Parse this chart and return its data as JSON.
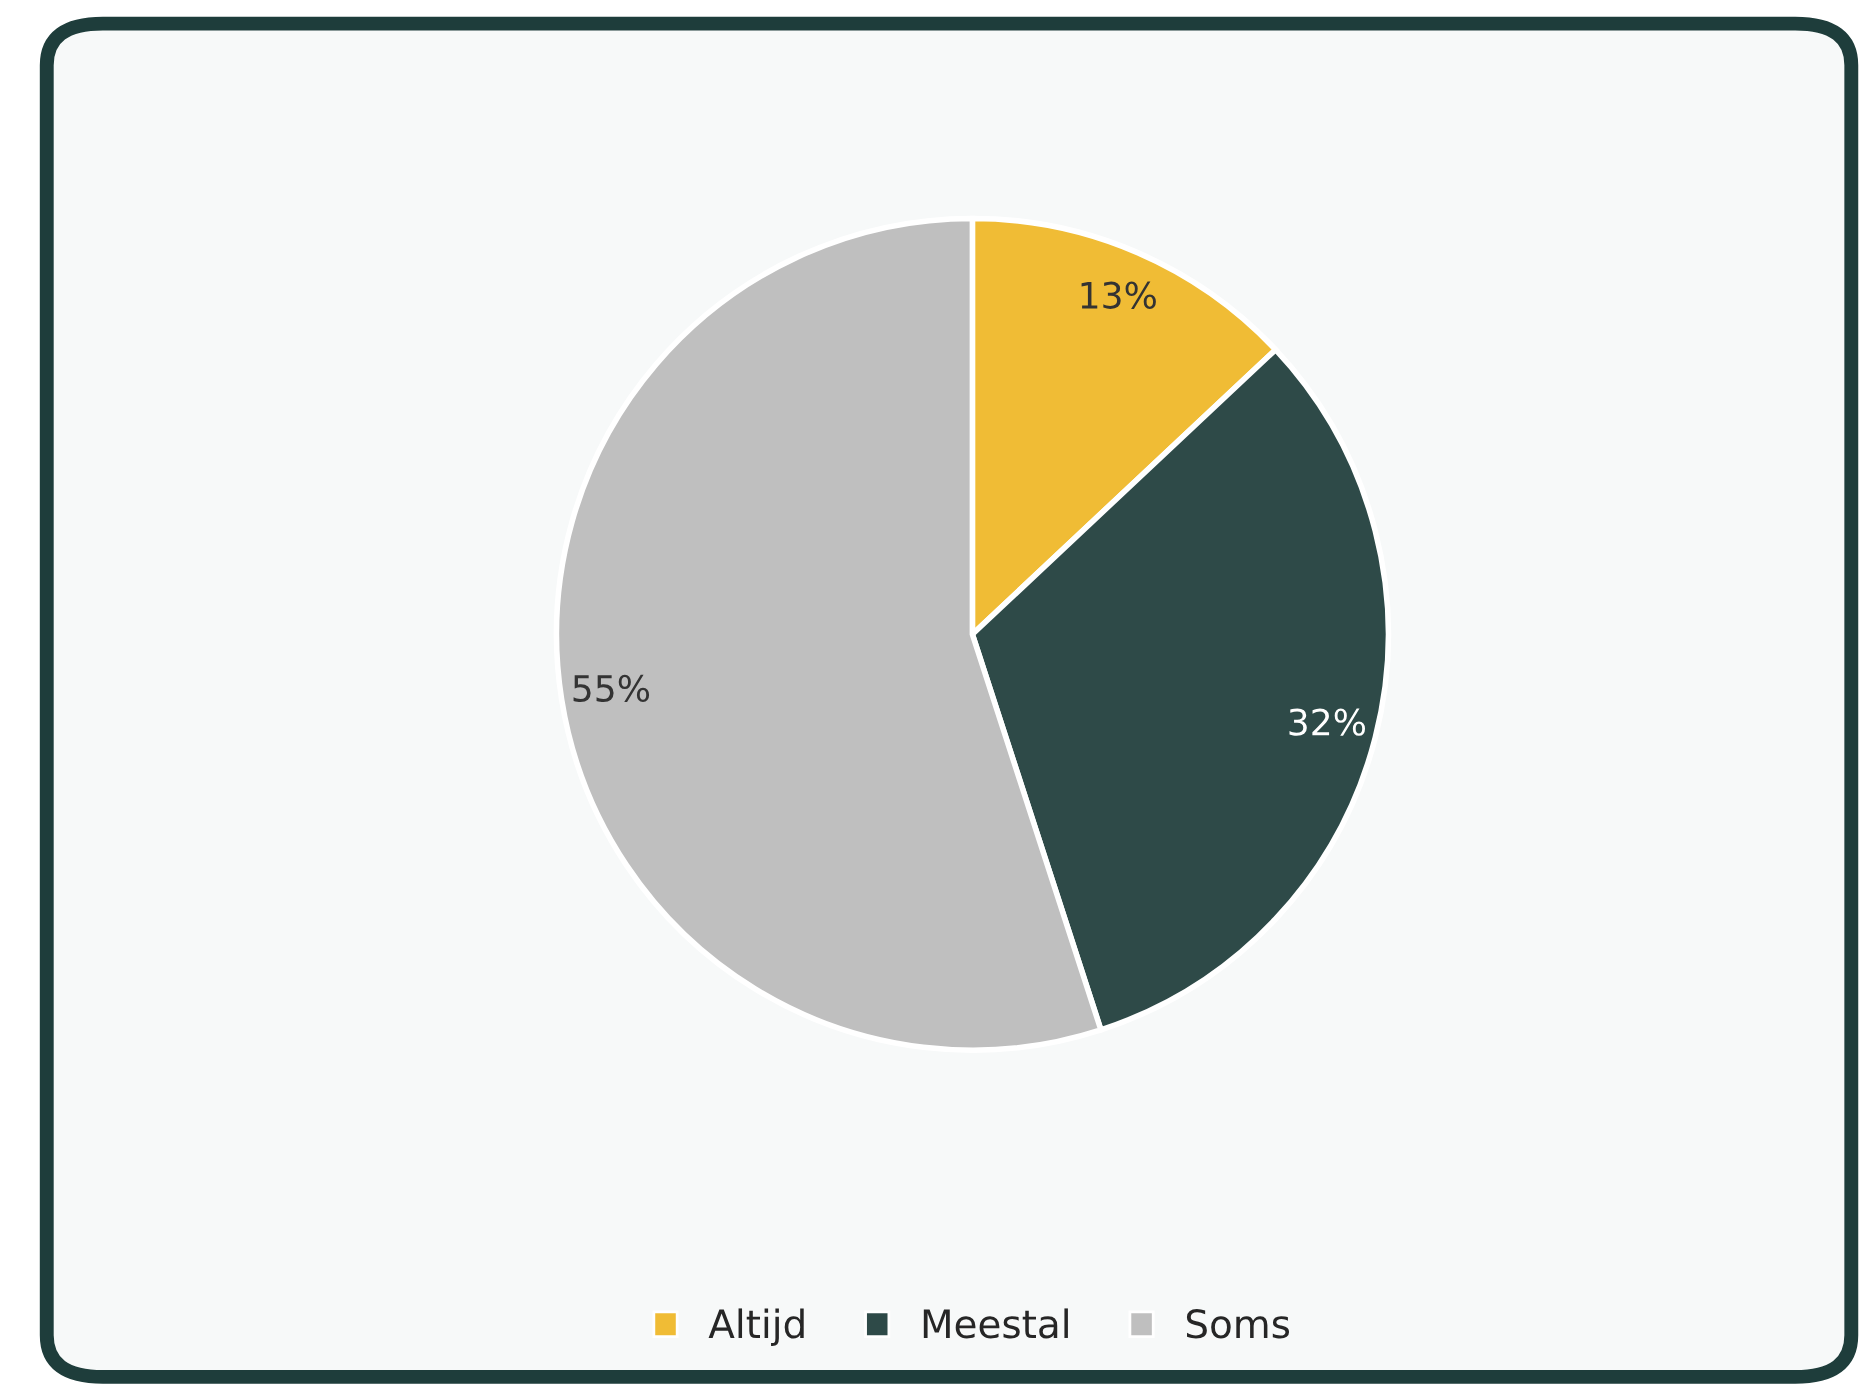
{
  "chart_data": {
    "type": "pie",
    "categories": [
      "Altijd",
      "Meestal",
      "Soms"
    ],
    "values": [
      13,
      32,
      55
    ],
    "colors": [
      "#f0bc35",
      "#2e4a48",
      "#bfbfbf"
    ],
    "value_labels": [
      "13%",
      "32%",
      "55%"
    ],
    "legend": "bottom"
  }
}
